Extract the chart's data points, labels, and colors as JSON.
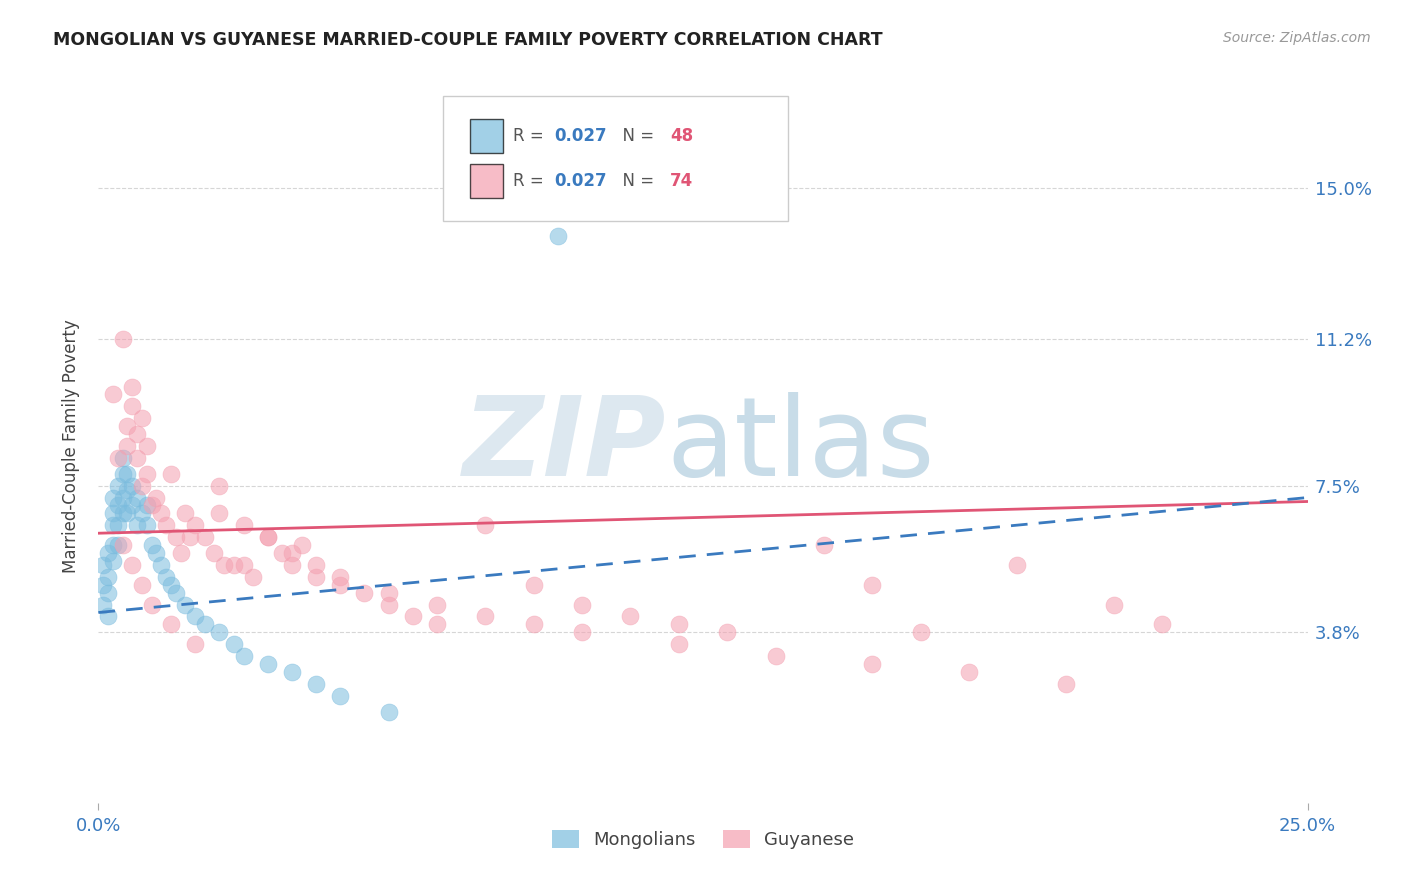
{
  "title": "MONGOLIAN VS GUYANESE MARRIED-COUPLE FAMILY POVERTY CORRELATION CHART",
  "source": "Source: ZipAtlas.com",
  "ylabel": "Married-Couple Family Poverty",
  "ytick_labels": [
    "15.0%",
    "11.2%",
    "7.5%",
    "3.8%"
  ],
  "ytick_values": [
    0.15,
    0.112,
    0.075,
    0.038
  ],
  "xlim": [
    0.0,
    0.25
  ],
  "ylim": [
    -0.005,
    0.175
  ],
  "mongolian_color": "#7bbcde",
  "guyanese_color": "#f4a0b0",
  "mongolian_line_color": "#3a7abf",
  "guyanese_line_color": "#e05575",
  "background_color": "#ffffff",
  "grid_color": "#cccccc",
  "mongolian_x": [
    0.001,
    0.001,
    0.001,
    0.002,
    0.002,
    0.002,
    0.002,
    0.003,
    0.003,
    0.003,
    0.003,
    0.003,
    0.004,
    0.004,
    0.004,
    0.004,
    0.005,
    0.005,
    0.005,
    0.005,
    0.006,
    0.006,
    0.006,
    0.007,
    0.007,
    0.008,
    0.008,
    0.009,
    0.01,
    0.01,
    0.011,
    0.012,
    0.013,
    0.014,
    0.015,
    0.016,
    0.018,
    0.02,
    0.022,
    0.025,
    0.028,
    0.03,
    0.035,
    0.04,
    0.045,
    0.05,
    0.06,
    0.095
  ],
  "mongolian_y": [
    0.055,
    0.05,
    0.045,
    0.058,
    0.052,
    0.048,
    0.042,
    0.072,
    0.068,
    0.065,
    0.06,
    0.056,
    0.075,
    0.07,
    0.065,
    0.06,
    0.082,
    0.078,
    0.072,
    0.068,
    0.078,
    0.074,
    0.068,
    0.075,
    0.07,
    0.072,
    0.065,
    0.068,
    0.07,
    0.065,
    0.06,
    0.058,
    0.055,
    0.052,
    0.05,
    0.048,
    0.045,
    0.042,
    0.04,
    0.038,
    0.035,
    0.032,
    0.03,
    0.028,
    0.025,
    0.022,
    0.018,
    0.138
  ],
  "guyanese_x": [
    0.003,
    0.004,
    0.005,
    0.006,
    0.006,
    0.007,
    0.007,
    0.008,
    0.008,
    0.009,
    0.009,
    0.01,
    0.01,
    0.011,
    0.012,
    0.013,
    0.014,
    0.015,
    0.016,
    0.017,
    0.018,
    0.019,
    0.02,
    0.022,
    0.024,
    0.025,
    0.026,
    0.028,
    0.03,
    0.032,
    0.035,
    0.038,
    0.04,
    0.042,
    0.045,
    0.05,
    0.055,
    0.06,
    0.065,
    0.07,
    0.08,
    0.09,
    0.1,
    0.11,
    0.12,
    0.13,
    0.15,
    0.16,
    0.17,
    0.19,
    0.21,
    0.22,
    0.025,
    0.03,
    0.035,
    0.04,
    0.045,
    0.05,
    0.06,
    0.07,
    0.08,
    0.09,
    0.1,
    0.12,
    0.14,
    0.16,
    0.18,
    0.2,
    0.005,
    0.007,
    0.009,
    0.011,
    0.015,
    0.02
  ],
  "guyanese_y": [
    0.098,
    0.082,
    0.112,
    0.09,
    0.085,
    0.1,
    0.095,
    0.088,
    0.082,
    0.092,
    0.075,
    0.085,
    0.078,
    0.07,
    0.072,
    0.068,
    0.065,
    0.078,
    0.062,
    0.058,
    0.068,
    0.062,
    0.065,
    0.062,
    0.058,
    0.075,
    0.055,
    0.055,
    0.055,
    0.052,
    0.062,
    0.058,
    0.055,
    0.06,
    0.052,
    0.05,
    0.048,
    0.045,
    0.042,
    0.04,
    0.065,
    0.05,
    0.045,
    0.042,
    0.04,
    0.038,
    0.06,
    0.05,
    0.038,
    0.055,
    0.045,
    0.04,
    0.068,
    0.065,
    0.062,
    0.058,
    0.055,
    0.052,
    0.048,
    0.045,
    0.042,
    0.04,
    0.038,
    0.035,
    0.032,
    0.03,
    0.028,
    0.025,
    0.06,
    0.055,
    0.05,
    0.045,
    0.04,
    0.035
  ]
}
